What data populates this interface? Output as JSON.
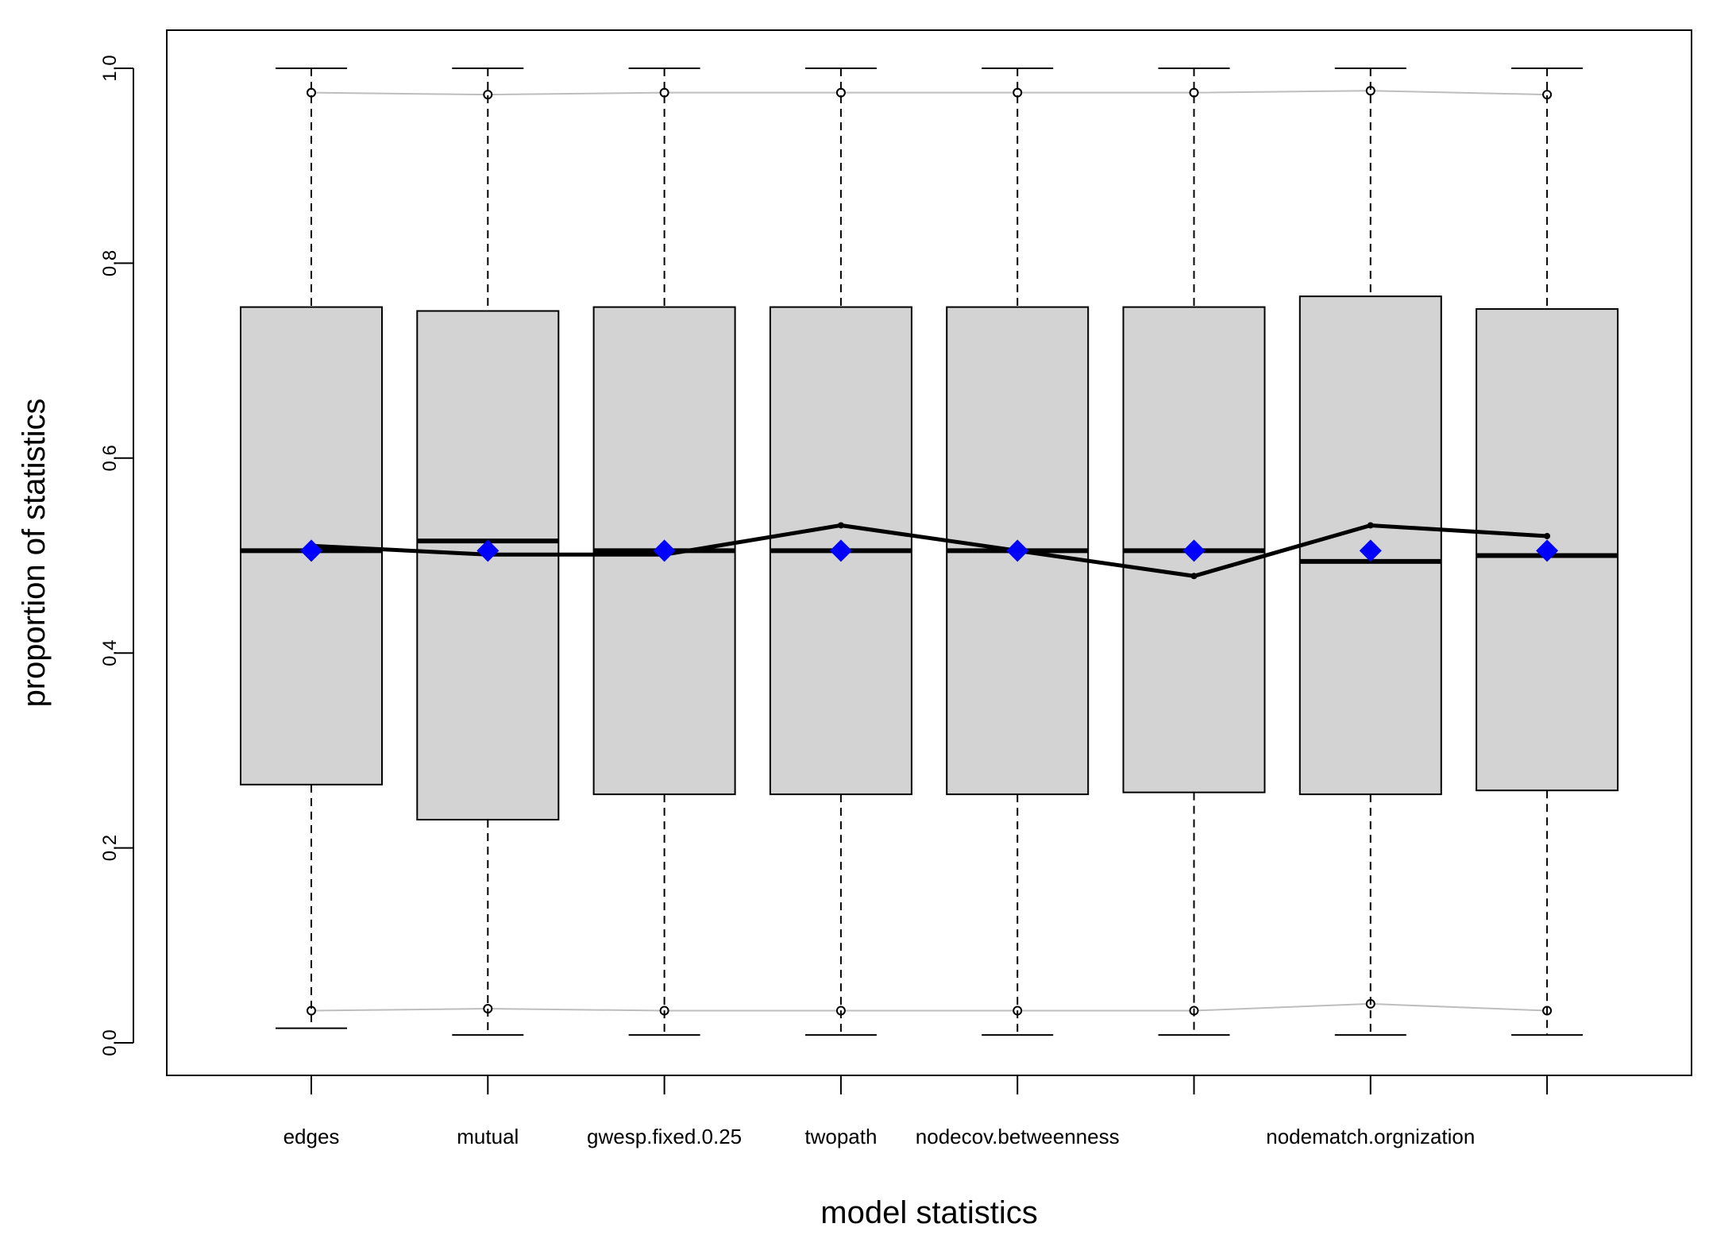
{
  "chart_data": {
    "type": "boxplot",
    "xlabel": "model statistics",
    "ylabel": "proportion of statistics",
    "ylim": [
      0,
      1
    ],
    "yticks": [
      "0.0",
      "0.2",
      "0.4",
      "0.6",
      "0.8",
      "1.0"
    ],
    "categories": [
      "edges",
      "mutual",
      "gwesp.fixed.0.25",
      "twopath",
      "nodecov.betweenness",
      "",
      "nodematch.orgnization",
      ""
    ],
    "boxes": [
      {
        "whisker_low": 0.015,
        "q1": 0.265,
        "median": 0.505,
        "q3": 0.755,
        "whisker_high": 1.0
      },
      {
        "whisker_low": 0.008,
        "q1": 0.229,
        "median": 0.515,
        "q3": 0.751,
        "whisker_high": 1.0
      },
      {
        "whisker_low": 0.008,
        "q1": 0.255,
        "median": 0.505,
        "q3": 0.755,
        "whisker_high": 1.0
      },
      {
        "whisker_low": 0.008,
        "q1": 0.255,
        "median": 0.505,
        "q3": 0.755,
        "whisker_high": 1.0
      },
      {
        "whisker_low": 0.008,
        "q1": 0.255,
        "median": 0.505,
        "q3": 0.755,
        "whisker_high": 1.0
      },
      {
        "whisker_low": 0.008,
        "q1": 0.257,
        "median": 0.505,
        "q3": 0.755,
        "whisker_high": 1.0
      },
      {
        "whisker_low": 0.008,
        "q1": 0.255,
        "median": 0.494,
        "q3": 0.766,
        "whisker_high": 1.0
      },
      {
        "whisker_low": 0.008,
        "q1": 0.259,
        "median": 0.5,
        "q3": 0.753,
        "whisker_high": 1.0
      }
    ],
    "observed_line": [
      0.51,
      0.501,
      0.501,
      0.531,
      0.505,
      0.479,
      0.531,
      0.52
    ],
    "expected_points": [
      0.505,
      0.505,
      0.505,
      0.505,
      0.505,
      0.505,
      0.505,
      0.505
    ],
    "ci_upper": [
      0.975,
      0.973,
      0.975,
      0.975,
      0.975,
      0.975,
      0.977,
      0.973
    ],
    "ci_lower": [
      0.033,
      0.035,
      0.033,
      0.033,
      0.033,
      0.033,
      0.04,
      0.033
    ],
    "colors": {
      "box_fill": "#d3d3d3",
      "observed": "#000000",
      "expected": "#0000ff",
      "ci": "#bebebe"
    },
    "grid": false,
    "legend": "none"
  }
}
